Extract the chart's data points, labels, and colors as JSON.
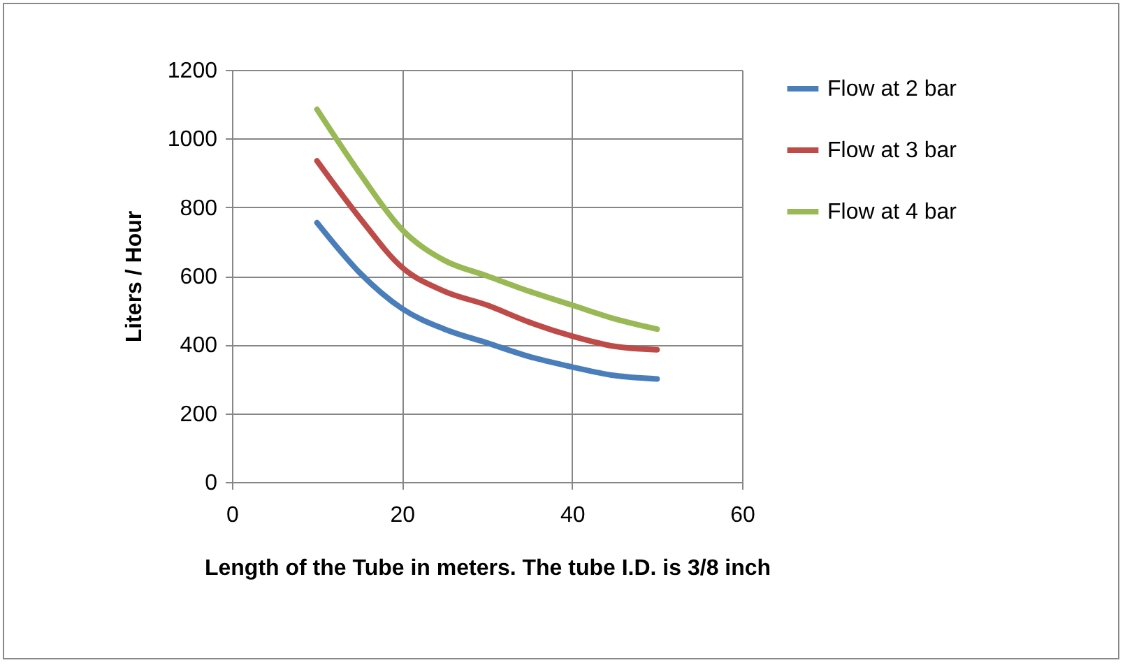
{
  "chart_data": {
    "type": "line",
    "xlabel": "Length of the Tube in meters. The tube I.D. is 3/8 inch",
    "ylabel": "Liters / Hour",
    "x": [
      10,
      15,
      20,
      25,
      30,
      35,
      40,
      45,
      50
    ],
    "series": [
      {
        "name": "Flow at 2 bar",
        "color": "#4a7ebb",
        "values": [
          755,
          610,
          505,
          445,
          405,
          365,
          335,
          310,
          300
        ]
      },
      {
        "name": "Flow at 3 bar",
        "color": "#be4b48",
        "values": [
          935,
          770,
          625,
          555,
          515,
          465,
          425,
          395,
          385
        ]
      },
      {
        "name": "Flow at 4 bar",
        "color": "#98b954",
        "values": [
          1085,
          900,
          735,
          645,
          600,
          555,
          515,
          475,
          445
        ]
      }
    ],
    "xlim": [
      0,
      60
    ],
    "xticks": [
      0,
      20,
      40,
      60
    ],
    "ylim": [
      0,
      1200
    ],
    "yticks": [
      0,
      200,
      400,
      600,
      800,
      1000,
      1200
    ],
    "grid": true,
    "legend": "right",
    "marker": "none",
    "line_style": "solid"
  }
}
